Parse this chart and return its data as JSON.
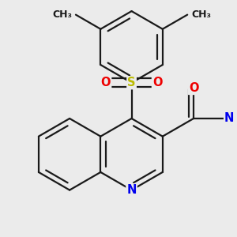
{
  "background_color": "#ebebeb",
  "bond_color": "#1a1a1a",
  "bond_width": 1.6,
  "atom_colors": {
    "N": "#0000ee",
    "O": "#ee0000",
    "S": "#bbbb00",
    "C": "#1a1a1a"
  },
  "font_size_atom": 10.5,
  "font_size_methyl": 9.0
}
